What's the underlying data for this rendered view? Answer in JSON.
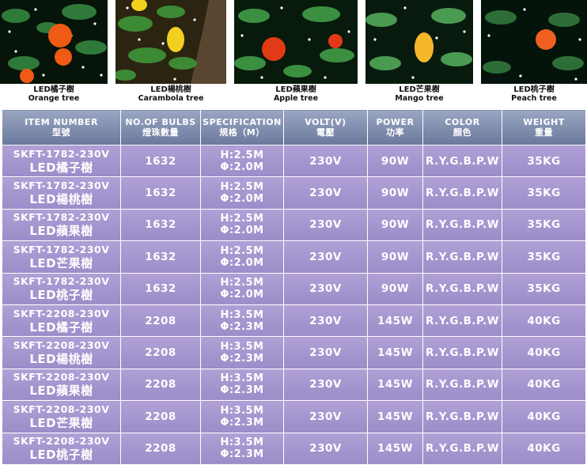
{
  "products": [
    {
      "caption_cn": "LED橘子樹",
      "caption_en": "Orange tree",
      "fruit_color": "#ef5a14"
    },
    {
      "caption_cn": "LED楊桃樹",
      "caption_en": "Carambola tree",
      "fruit_color": "#f2d020"
    },
    {
      "caption_cn": "LED蘋果樹",
      "caption_en": "Apple tree",
      "fruit_color": "#e23a16"
    },
    {
      "caption_cn": "LED芒果樹",
      "caption_en": "Mango tree",
      "fruit_color": "#f4b82a"
    },
    {
      "caption_cn": "LED桃子樹",
      "caption_en": "Peach tree",
      "fruit_color": "#f06020"
    }
  ],
  "table": {
    "headers": [
      {
        "en": "ITEM NUMBER",
        "cn": "型號"
      },
      {
        "en": "NO.OF BULBS",
        "cn": "燈珠數量"
      },
      {
        "en": "SPECIFICATION",
        "cn": "規格（M）"
      },
      {
        "en": "VOLT(V)",
        "cn": "電壓"
      },
      {
        "en": "POWER",
        "cn": "功率"
      },
      {
        "en": "COLOR",
        "cn": "顏色"
      },
      {
        "en": "WEIGHT",
        "cn": "重量"
      }
    ],
    "rows": [
      {
        "code": "SKFT-1782-230V",
        "name": "LED橘子樹",
        "bulbs": "1632",
        "spec_h": "H:2.5M",
        "spec_phi": "Φ:2.0M",
        "volt": "230V",
        "power": "90W",
        "color": "R.Y.G.B.P.W",
        "weight": "35KG"
      },
      {
        "code": "SKFT-1782-230V",
        "name": "LED楊桃樹",
        "bulbs": "1632",
        "spec_h": "H:2.5M",
        "spec_phi": "Φ:2.0M",
        "volt": "230V",
        "power": "90W",
        "color": "R.Y.G.B.P.W",
        "weight": "35KG"
      },
      {
        "code": "SKFT-1782-230V",
        "name": "LED蘋果樹",
        "bulbs": "1632",
        "spec_h": "H:2.5M",
        "spec_phi": "Φ:2.0M",
        "volt": "230V",
        "power": "90W",
        "color": "R.Y.G.B.P.W",
        "weight": "35KG"
      },
      {
        "code": "SKFT-1782-230V",
        "name": "LED芒果樹",
        "bulbs": "1632",
        "spec_h": "H:2.5M",
        "spec_phi": "Φ:2.0M",
        "volt": "230V",
        "power": "90W",
        "color": "R.Y.G.B.P.W",
        "weight": "35KG"
      },
      {
        "code": "SKFT-1782-230V",
        "name": "LED桃子樹",
        "bulbs": "1632",
        "spec_h": "H:2.5M",
        "spec_phi": "Φ:2.0M",
        "volt": "230V",
        "power": "90W",
        "color": "R.Y.G.B.P.W",
        "weight": "35KG"
      },
      {
        "code": "SKFT-2208-230V",
        "name": "LED橘子樹",
        "bulbs": "2208",
        "spec_h": "H:3.5M",
        "spec_phi": "Φ:2.3M",
        "volt": "230V",
        "power": "145W",
        "color": "R.Y.G.B.P.W",
        "weight": "40KG"
      },
      {
        "code": "SKFT-2208-230V",
        "name": "LED楊桃樹",
        "bulbs": "2208",
        "spec_h": "H:3.5M",
        "spec_phi": "Φ:2.3M",
        "volt": "230V",
        "power": "145W",
        "color": "R.Y.G.B.P.W",
        "weight": "40KG"
      },
      {
        "code": "SKFT-2208-230V",
        "name": "LED蘋果樹",
        "bulbs": "2208",
        "spec_h": "H:3.5M",
        "spec_phi": "Φ:2.3M",
        "volt": "230V",
        "power": "145W",
        "color": "R.Y.G.B.P.W",
        "weight": "40KG"
      },
      {
        "code": "SKFT-2208-230V",
        "name": "LED芒果樹",
        "bulbs": "2208",
        "spec_h": "H:3.5M",
        "spec_phi": "Φ:2.3M",
        "volt": "230V",
        "power": "145W",
        "color": "R.Y.G.B.P.W",
        "weight": "40KG"
      },
      {
        "code": "SKFT-2208-230V",
        "name": "LED桃子樹",
        "bulbs": "2208",
        "spec_h": "H:3.5M",
        "spec_phi": "Φ:2.3M",
        "volt": "230V",
        "power": "145W",
        "color": "R.Y.G.B.P.W",
        "weight": "40KG"
      }
    ]
  }
}
